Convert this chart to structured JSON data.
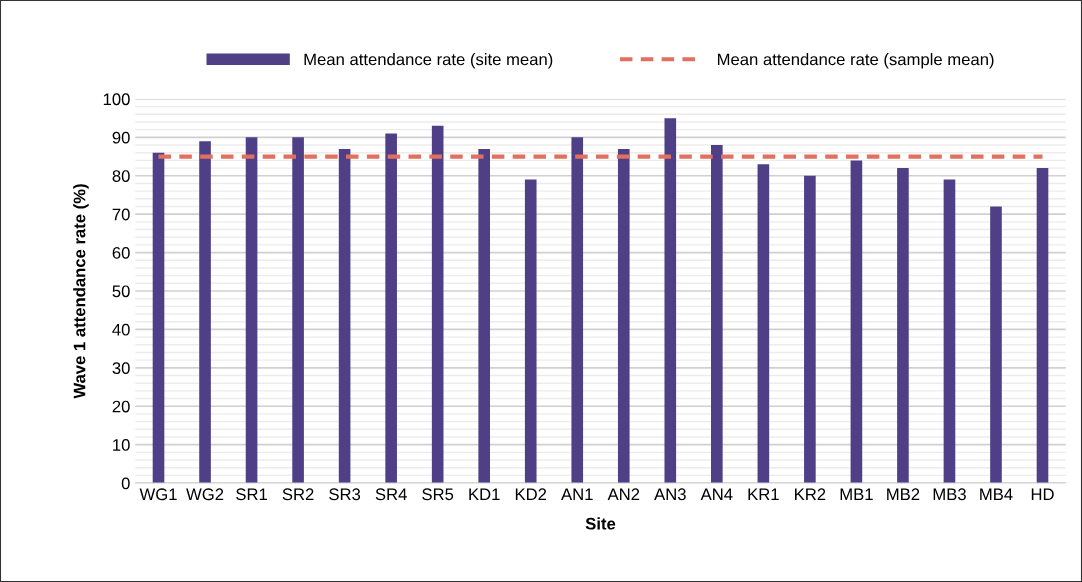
{
  "chart_data": {
    "type": "bar",
    "xlabel": "Site",
    "ylabel": "Wave 1 attendance rate (%)",
    "categories": [
      "WG1",
      "WG2",
      "SR1",
      "SR2",
      "SR3",
      "SR4",
      "SR5",
      "KD1",
      "KD2",
      "AN1",
      "AN2",
      "AN3",
      "AN4",
      "KR1",
      "KR2",
      "MB1",
      "MB2",
      "MB3",
      "MB4",
      "HD"
    ],
    "series": [
      {
        "name": "Mean attendance rate (site mean)",
        "color": "#4f3f87",
        "values": [
          86,
          89,
          90,
          90,
          87,
          91,
          93,
          87,
          79,
          90,
          87,
          95,
          88,
          83,
          80,
          84,
          82,
          79,
          72,
          82
        ]
      },
      {
        "name": "Mean attendance rate (sample mean)",
        "type": "line",
        "color": "#e07060",
        "line_style": "dashed",
        "values": [
          85,
          85,
          85,
          85,
          85,
          85,
          85,
          85,
          85,
          85,
          85,
          85,
          85,
          85,
          85,
          85,
          85,
          85,
          85,
          85
        ]
      }
    ],
    "ylim": [
      0,
      100
    ],
    "yticks": [
      0,
      {
        "value": 2,
        "label": null
      },
      {
        "value": 4,
        "label": null
      },
      {
        "value": 6,
        "label": null
      },
      {
        "value": 8,
        "label": null
      },
      10,
      {
        "value": 12,
        "label": null
      },
      {
        "value": 14,
        "label": null
      },
      {
        "value": 16,
        "label": null
      },
      {
        "value": 18,
        "label": null
      },
      20,
      {
        "value": 22,
        "label": null
      },
      {
        "value": 24,
        "label": null
      },
      {
        "value": 26,
        "label": null
      },
      {
        "value": 28,
        "label": null
      },
      30,
      {
        "value": 32,
        "label": null
      },
      {
        "value": 34,
        "label": null
      },
      {
        "value": 36,
        "label": null
      },
      {
        "value": 38,
        "label": null
      },
      40,
      {
        "value": 42,
        "label": null
      },
      {
        "value": 44,
        "label": null
      },
      {
        "value": 46,
        "label": null
      },
      {
        "value": 48,
        "label": null
      },
      50,
      {
        "value": 52,
        "label": null
      },
      {
        "value": 54,
        "label": null
      },
      {
        "value": 56,
        "label": null
      },
      {
        "value": 58,
        "label": null
      },
      60,
      {
        "value": 62,
        "label": null
      },
      {
        "value": 64,
        "label": null
      },
      {
        "value": 66,
        "label": null
      },
      {
        "value": 68,
        "label": null
      },
      70,
      {
        "value": 72,
        "label": null
      },
      {
        "value": 74,
        "label": null
      },
      {
        "value": 76,
        "label": null
      },
      {
        "value": 78,
        "label": null
      },
      80,
      {
        "value": 82,
        "label": null
      },
      {
        "value": 84,
        "label": null
      },
      {
        "value": 86,
        "label": null
      },
      {
        "value": 88,
        "label": null
      },
      90,
      {
        "value": 92,
        "label": null
      },
      {
        "value": 94,
        "label": null
      },
      {
        "value": 96,
        "label": null
      },
      {
        "value": 98,
        "label": null
      },
      100
    ],
    "grid": "y",
    "legend": "top"
  }
}
